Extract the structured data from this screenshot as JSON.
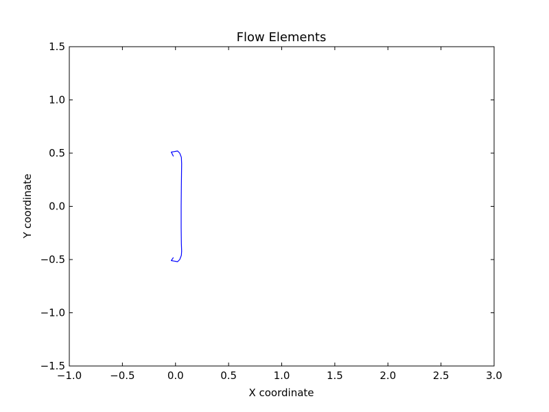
{
  "chart_data": {
    "type": "line",
    "title": "Flow Elements",
    "xlabel": "X coordinate",
    "ylabel": "Y coordinate",
    "xlim": [
      -1.0,
      3.0
    ],
    "ylim": [
      -1.5,
      1.5
    ],
    "xticks": [
      -1.0,
      -0.5,
      0.0,
      0.5,
      1.0,
      1.5,
      2.0,
      2.5,
      3.0
    ],
    "xtick_labels": [
      "−1.0",
      "−0.5",
      "0.0",
      "0.5",
      "1.0",
      "1.5",
      "2.0",
      "2.5",
      "3.0"
    ],
    "yticks": [
      -1.5,
      -1.0,
      -0.5,
      0.0,
      0.5,
      1.0,
      1.5
    ],
    "ytick_labels": [
      "−1.5",
      "−1.0",
      "−0.5",
      "0.0",
      "0.5",
      "1.0",
      "1.5"
    ],
    "grid": false,
    "series": [
      {
        "color": "#0000ff",
        "x": [
          -0.02,
          -0.04,
          0.02,
          0.04,
          0.055,
          0.058,
          0.055,
          0.053,
          0.053,
          0.055,
          0.058,
          0.055,
          0.04,
          0.02,
          -0.04,
          -0.02
        ],
        "y": [
          0.47,
          0.51,
          0.52,
          0.5,
          0.46,
          0.4,
          0.2,
          0.0,
          -0.2,
          -0.35,
          -0.42,
          -0.46,
          -0.5,
          -0.52,
          -0.51,
          -0.48
        ]
      }
    ]
  }
}
